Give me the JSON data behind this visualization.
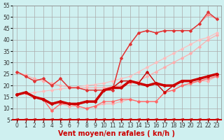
{
  "xlabel": "Vent moyen/en rafales ( kn/h )",
  "bg_color": "#cff0f0",
  "grid_color": "#aaaaaa",
  "xlim": [
    -0.5,
    23.5
  ],
  "ylim": [
    5,
    55
  ],
  "yticks": [
    5,
    10,
    15,
    20,
    25,
    30,
    35,
    40,
    45,
    50,
    55
  ],
  "xticks": [
    0,
    1,
    2,
    3,
    4,
    5,
    6,
    7,
    8,
    9,
    10,
    11,
    12,
    13,
    14,
    15,
    16,
    17,
    18,
    19,
    20,
    21,
    22,
    23
  ],
  "series": [
    {
      "x": [
        0,
        1,
        2,
        3,
        4,
        5,
        6,
        7,
        8,
        9,
        10,
        11,
        12,
        13,
        14,
        15,
        16,
        17,
        18,
        19,
        20,
        21,
        22,
        23
      ],
      "y": [
        26,
        24.5,
        23,
        22,
        21,
        20,
        19.5,
        19,
        19,
        19,
        19,
        19.5,
        20,
        21,
        22,
        24,
        26,
        28,
        30,
        32,
        34,
        37,
        40,
        42
      ],
      "color": "#ffaaaa",
      "lw": 0.8,
      "marker": "D",
      "ms": 1.8,
      "zorder": 2
    },
    {
      "x": [
        0,
        1,
        2,
        3,
        4,
        5,
        6,
        7,
        8,
        9,
        10,
        11,
        12,
        13,
        14,
        15,
        16,
        17,
        18,
        19,
        20,
        21,
        22,
        23
      ],
      "y": [
        16,
        16.5,
        17,
        17.5,
        18,
        18.5,
        19,
        19.5,
        20,
        20.5,
        21,
        22,
        23,
        24,
        26,
        28,
        30,
        32,
        34,
        36,
        38,
        40,
        41,
        43
      ],
      "color": "#ffbbbb",
      "lw": 0.8,
      "marker": "D",
      "ms": 1.8,
      "zorder": 2
    },
    {
      "x": [
        0,
        1,
        2,
        3,
        4,
        5,
        6,
        7,
        8,
        9,
        10,
        11,
        12,
        13,
        14,
        15,
        16,
        17,
        18,
        19,
        20,
        21,
        22,
        23
      ],
      "y": [
        26,
        24,
        22,
        23,
        20,
        23,
        19,
        19,
        18,
        18,
        18,
        18,
        32,
        38,
        43,
        44,
        43,
        44,
        44,
        44,
        44,
        47,
        51,
        49
      ],
      "color": "#ff8888",
      "lw": 0.9,
      "marker": "D",
      "ms": 1.8,
      "zorder": 3
    },
    {
      "x": [
        0,
        1,
        2,
        3,
        4,
        5,
        6,
        7,
        8,
        9,
        10,
        11,
        12,
        13,
        14,
        15,
        16,
        17,
        18,
        19,
        20,
        21,
        22,
        23
      ],
      "y": [
        26,
        24,
        22,
        23,
        20,
        23,
        19,
        19,
        18,
        18,
        18,
        18,
        32,
        38,
        43,
        44,
        43,
        44,
        44,
        44,
        44,
        47,
        52,
        49
      ],
      "color": "#dd3333",
      "lw": 1.0,
      "marker": "D",
      "ms": 1.8,
      "zorder": 4
    },
    {
      "x": [
        0,
        1,
        2,
        3,
        4,
        5,
        6,
        7,
        8,
        9,
        10,
        11,
        12,
        13,
        14,
        15,
        16,
        17,
        18,
        19,
        20,
        21,
        22,
        23
      ],
      "y": [
        16,
        17,
        15,
        14,
        9,
        12,
        11,
        11,
        10,
        11,
        12,
        12,
        13,
        14,
        13,
        13,
        13,
        17,
        18,
        20,
        21,
        22,
        22,
        24
      ],
      "color": "#ffaaaa",
      "lw": 0.8,
      "marker": "D",
      "ms": 1.8,
      "zorder": 2
    },
    {
      "x": [
        0,
        1,
        2,
        3,
        4,
        5,
        6,
        7,
        8,
        9,
        10,
        11,
        12,
        13,
        14,
        15,
        16,
        17,
        18,
        19,
        20,
        21,
        22,
        23
      ],
      "y": [
        16,
        17,
        15,
        14,
        9,
        12,
        12,
        11,
        10,
        11,
        13,
        13,
        14,
        14,
        13,
        13,
        13,
        17,
        18,
        20,
        21,
        22,
        23,
        24
      ],
      "color": "#ff6666",
      "lw": 0.9,
      "marker": "D",
      "ms": 1.8,
      "zorder": 3
    },
    {
      "x": [
        0,
        1,
        2,
        3,
        4,
        5,
        6,
        7,
        8,
        9,
        10,
        11,
        12,
        13,
        14,
        15,
        16,
        17,
        18,
        19,
        20,
        21,
        22,
        23
      ],
      "y": [
        16,
        17,
        15,
        14,
        12,
        13,
        12,
        12,
        13,
        13,
        18,
        19,
        19,
        22,
        21,
        20,
        21,
        20,
        20,
        22,
        22,
        23,
        24,
        25
      ],
      "color": "#cc0000",
      "lw": 2.5,
      "marker": "D",
      "ms": 2.0,
      "zorder": 5
    },
    {
      "x": [
        0,
        1,
        2,
        3,
        4,
        5,
        6,
        7,
        8,
        9,
        10,
        11,
        12,
        13,
        14,
        15,
        16,
        17,
        18,
        19,
        20,
        21,
        22,
        23
      ],
      "y": [
        16,
        17,
        15,
        14,
        12,
        13,
        12,
        12,
        13,
        13,
        18,
        19,
        22,
        22,
        21,
        26,
        21,
        17,
        20,
        22,
        22,
        23,
        24,
        25
      ],
      "color": "#cc0000",
      "lw": 1.0,
      "marker": "D",
      "ms": 1.8,
      "zorder": 4
    }
  ],
  "tick_fontsize": 5.5,
  "label_fontsize": 7
}
